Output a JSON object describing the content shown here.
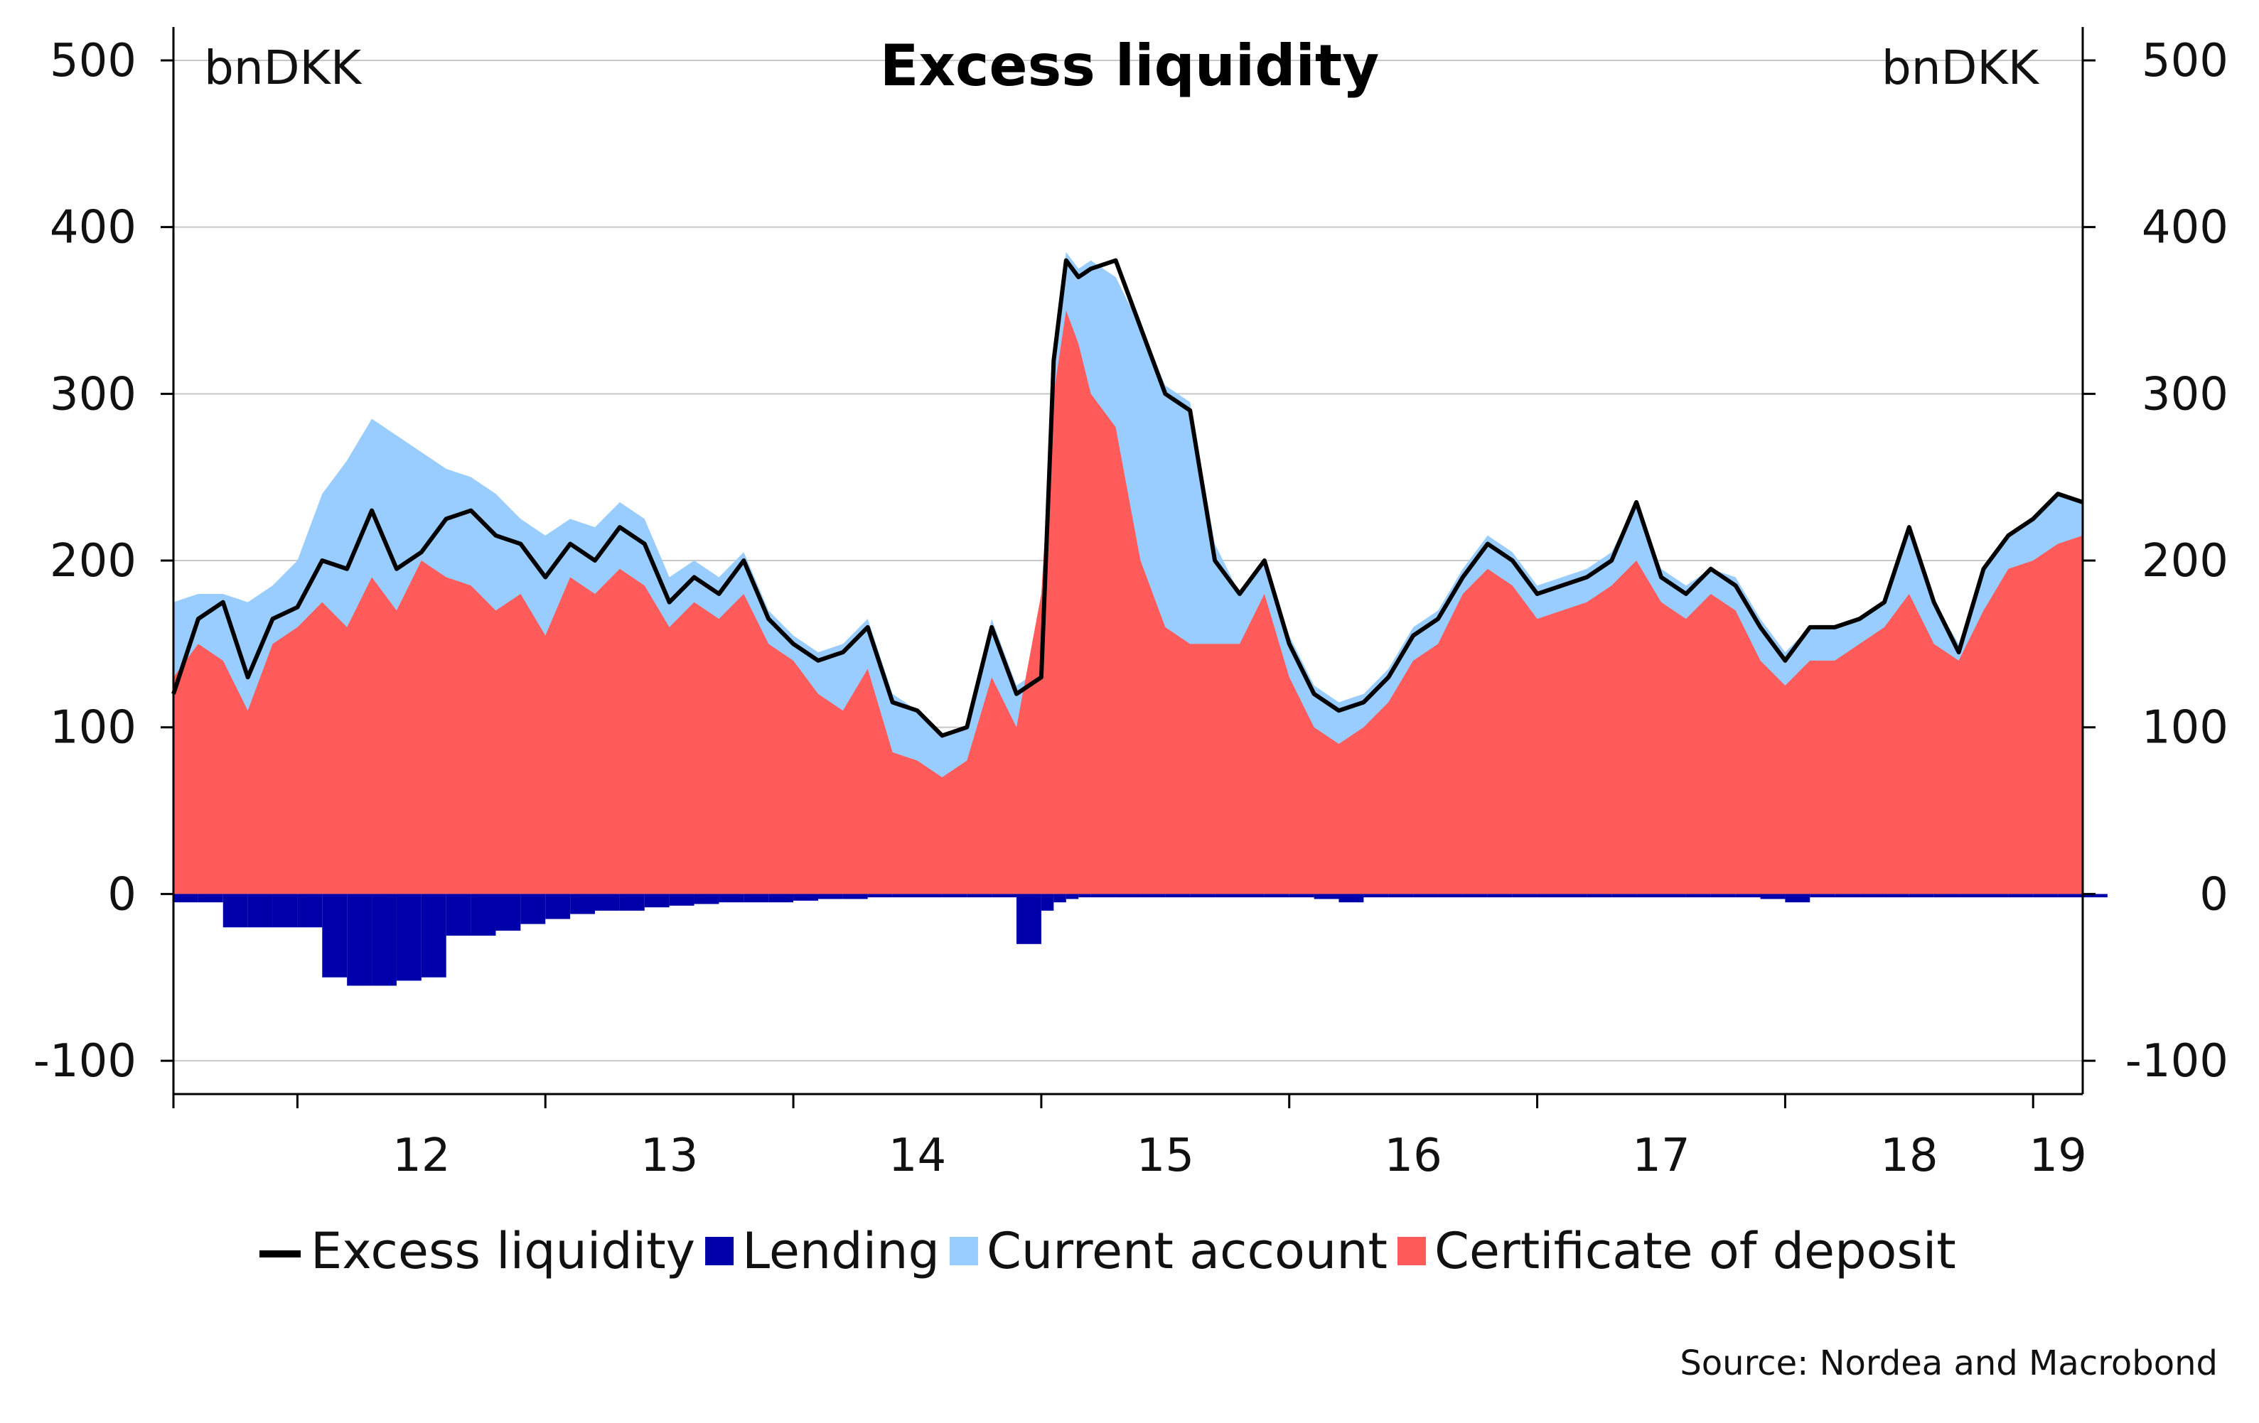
{
  "chart_data": {
    "type": "area",
    "title": "Excess liquidity",
    "unit_left": "bnDKK",
    "unit_right": "bnDKK",
    "source": "Source: Nordea and Macrobond",
    "ylim": [
      -120,
      520
    ],
    "yticks": [
      "500",
      "400",
      "300",
      "200",
      "100",
      "0",
      "-100"
    ],
    "ytick_values": [
      500,
      400,
      300,
      200,
      100,
      0,
      -100
    ],
    "xlim": [
      2011.5,
      2019.2
    ],
    "xtick_labels": [
      "12",
      "13",
      "14",
      "15",
      "16",
      "17",
      "18",
      "19"
    ],
    "xtick_label_positions": [
      2012.5,
      2013.5,
      2014.5,
      2015.5,
      2016.5,
      2017.5,
      2018.5,
      2019.1
    ],
    "year_boundaries": [
      2011.5,
      2012,
      2013,
      2014,
      2015,
      2016,
      2017,
      2018,
      2019
    ],
    "grid": true,
    "legend_position": "bottom",
    "colors": {
      "excess": "#000000",
      "lending": "#0000aa",
      "current": "#99ccff",
      "cd": "#ff5b5b"
    },
    "x": [
      2011.5,
      2011.6,
      2011.7,
      2011.8,
      2011.9,
      2012.0,
      2012.1,
      2012.2,
      2012.3,
      2012.4,
      2012.5,
      2012.6,
      2012.7,
      2012.8,
      2012.9,
      2013.0,
      2013.1,
      2013.2,
      2013.3,
      2013.4,
      2013.5,
      2013.6,
      2013.7,
      2013.8,
      2013.9,
      2014.0,
      2014.1,
      2014.2,
      2014.3,
      2014.4,
      2014.5,
      2014.6,
      2014.7,
      2014.8,
      2014.9,
      2015.0,
      2015.05,
      2015.1,
      2015.15,
      2015.2,
      2015.3,
      2015.4,
      2015.5,
      2015.6,
      2015.7,
      2015.8,
      2015.9,
      2016.0,
      2016.1,
      2016.2,
      2016.3,
      2016.4,
      2016.5,
      2016.6,
      2016.7,
      2016.8,
      2016.9,
      2017.0,
      2017.1,
      2017.2,
      2017.3,
      2017.4,
      2017.5,
      2017.6,
      2017.7,
      2017.8,
      2017.9,
      2018.0,
      2018.1,
      2018.2,
      2018.3,
      2018.4,
      2018.5,
      2018.6,
      2018.7,
      2018.8,
      2018.9,
      2019.0,
      2019.1,
      2019.2
    ],
    "series": [
      {
        "name": "Excess liquidity",
        "key": "excess",
        "kind": "line",
        "values": [
          120,
          165,
          175,
          130,
          165,
          172,
          200,
          195,
          230,
          195,
          205,
          225,
          230,
          215,
          210,
          190,
          210,
          200,
          220,
          210,
          175,
          190,
          180,
          200,
          165,
          150,
          140,
          145,
          160,
          115,
          110,
          95,
          100,
          160,
          120,
          130,
          320,
          380,
          370,
          375,
          380,
          340,
          300,
          290,
          200,
          180,
          200,
          150,
          120,
          110,
          115,
          130,
          155,
          165,
          190,
          210,
          200,
          180,
          185,
          190,
          200,
          235,
          190,
          180,
          195,
          185,
          160,
          140,
          160,
          160,
          165,
          175,
          220,
          175,
          145,
          195,
          215,
          225,
          240,
          235
        ]
      },
      {
        "name": "Lending",
        "key": "lending",
        "kind": "bar",
        "values": [
          -5,
          -5,
          -20,
          -20,
          -20,
          -20,
          -50,
          -55,
          -55,
          -52,
          -50,
          -25,
          -25,
          -22,
          -18,
          -15,
          -12,
          -10,
          -10,
          -8,
          -7,
          -6,
          -5,
          -5,
          -5,
          -4,
          -3,
          -3,
          -2,
          -2,
          -2,
          -2,
          -2,
          -2,
          -30,
          -10,
          -5,
          -3,
          -2,
          -2,
          -2,
          -2,
          -2,
          -2,
          -2,
          -2,
          -2,
          -2,
          -3,
          -5,
          -2,
          -2,
          -2,
          -2,
          -2,
          -2,
          -2,
          -2,
          -2,
          -2,
          -2,
          -2,
          -2,
          -2,
          -2,
          -2,
          -3,
          -5,
          -2,
          -2,
          -2,
          -2,
          -2,
          -2,
          -2,
          -2,
          -2,
          -2,
          -2,
          -2
        ]
      },
      {
        "name": "Current account",
        "key": "current",
        "kind": "area",
        "values": [
          175,
          180,
          180,
          175,
          185,
          200,
          240,
          260,
          285,
          275,
          265,
          255,
          250,
          240,
          225,
          215,
          225,
          220,
          235,
          225,
          190,
          200,
          190,
          205,
          170,
          155,
          145,
          150,
          165,
          120,
          110,
          95,
          100,
          165,
          125,
          135,
          330,
          385,
          375,
          380,
          370,
          340,
          305,
          295,
          210,
          180,
          200,
          155,
          125,
          115,
          120,
          135,
          160,
          170,
          195,
          215,
          205,
          185,
          190,
          195,
          205,
          235,
          195,
          185,
          195,
          190,
          165,
          145,
          160,
          160,
          165,
          175,
          220,
          175,
          150,
          195,
          215,
          225,
          240,
          235
        ]
      },
      {
        "name": "Certificate of deposit",
        "key": "cd",
        "kind": "area",
        "values": [
          130,
          150,
          140,
          110,
          150,
          160,
          175,
          160,
          190,
          170,
          200,
          190,
          185,
          170,
          180,
          155,
          190,
          180,
          195,
          185,
          160,
          175,
          165,
          180,
          150,
          140,
          120,
          110,
          135,
          85,
          80,
          70,
          80,
          130,
          100,
          180,
          300,
          350,
          330,
          300,
          280,
          200,
          160,
          150,
          150,
          150,
          180,
          130,
          100,
          90,
          100,
          115,
          140,
          150,
          180,
          195,
          185,
          165,
          170,
          175,
          185,
          200,
          175,
          165,
          180,
          170,
          140,
          125,
          140,
          140,
          150,
          160,
          180,
          150,
          140,
          170,
          195,
          200,
          210,
          215
        ]
      }
    ]
  },
  "legend": [
    {
      "label": "Excess liquidity",
      "key": "excess",
      "marker": "line"
    },
    {
      "label": "Lending",
      "key": "lending",
      "marker": "square"
    },
    {
      "label": "Current account",
      "key": "current",
      "marker": "square"
    },
    {
      "label": "Certificate of deposit",
      "key": "cd",
      "marker": "square"
    }
  ]
}
